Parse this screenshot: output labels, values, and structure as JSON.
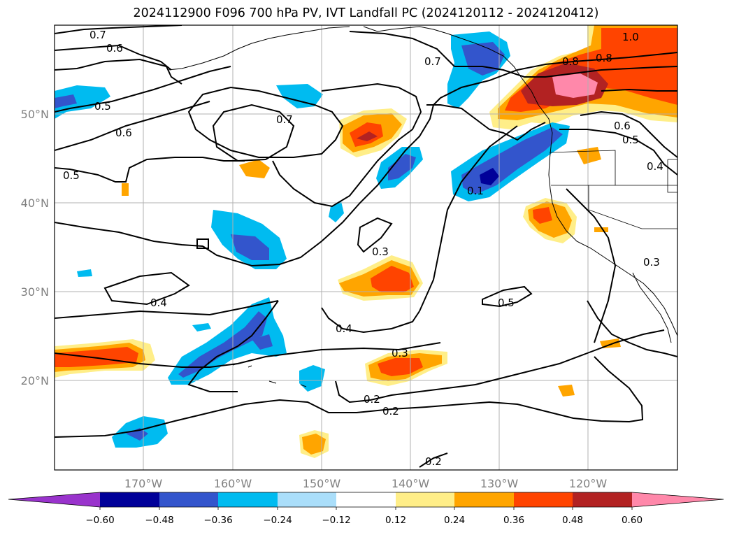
{
  "title": "2024112900 F096 700 hPa PV, IVT Landfall PC (2024120112 - 2024120412)",
  "map": {
    "lat_labels": [
      "50°N",
      "40°N",
      "30°N",
      "20°N"
    ],
    "lon_labels": [
      "170°W",
      "160°W",
      "150°W",
      "140°W",
      "130°W",
      "120°W"
    ],
    "contour_labels": [
      "0.7",
      "0.6",
      "0.5",
      "0.6",
      "0.5",
      "0.7",
      "0.7",
      "0.8",
      "0.8",
      "1.0",
      "0.6",
      "0.5",
      "0.4",
      "0.3",
      "0.3",
      "0.4",
      "0.4",
      "0.5",
      "0.3",
      "0.2",
      "0.2",
      "0.2",
      "0.1"
    ]
  },
  "colorbar": {
    "ticks": [
      "−0.60",
      "−0.48",
      "−0.36",
      "−0.24",
      "−0.12",
      "0.12",
      "0.24",
      "0.36",
      "0.48",
      "0.60"
    ],
    "colors": [
      "#9933cc",
      "#000099",
      "#3355cc",
      "#00bbf0",
      "#aadefa",
      "#ffffff",
      "#ffee88",
      "#ffa500",
      "#ff4400",
      "#b22222",
      "#ff88aa"
    ]
  }
}
